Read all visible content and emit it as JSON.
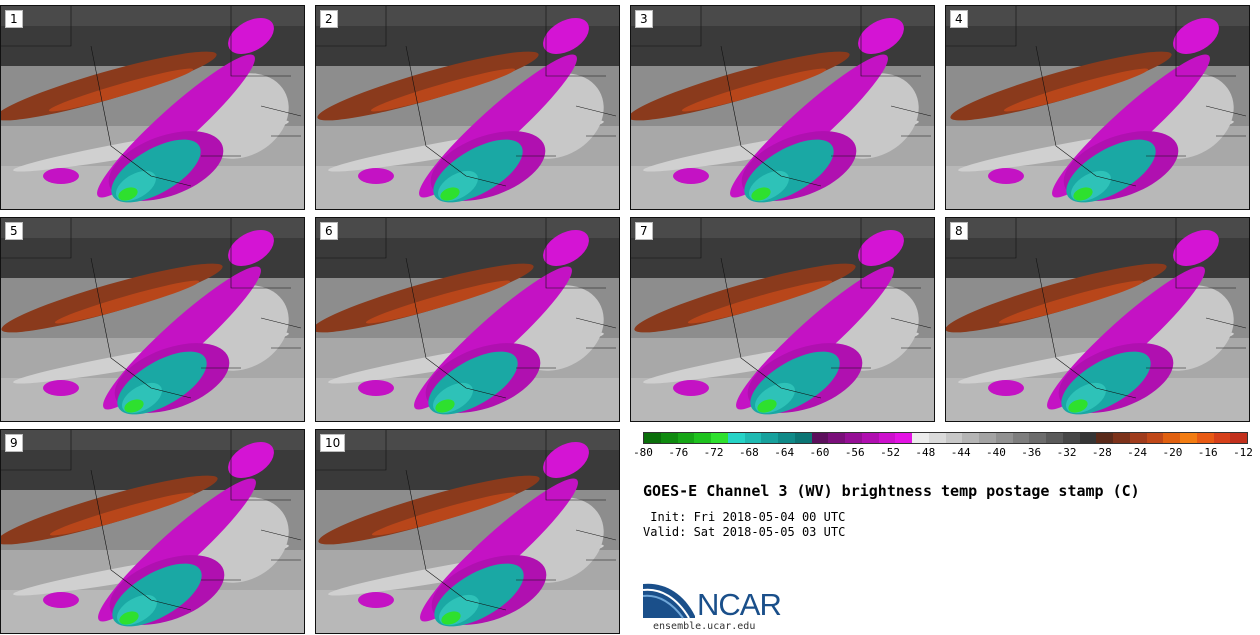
{
  "panels": [
    {
      "label": "1"
    },
    {
      "label": "2"
    },
    {
      "label": "3"
    },
    {
      "label": "4"
    },
    {
      "label": "5"
    },
    {
      "label": "6"
    },
    {
      "label": "7"
    },
    {
      "label": "8"
    },
    {
      "label": "9"
    },
    {
      "label": "10"
    }
  ],
  "colorbar": {
    "colors": [
      "#0a6e0a",
      "#0f8a0f",
      "#16a516",
      "#1ec21e",
      "#2ee02e",
      "#26d3c6",
      "#1fbab2",
      "#17a19d",
      "#108a88",
      "#0b7574",
      "#5c0f5c",
      "#7a0f7a",
      "#950f95",
      "#b00fb0",
      "#cc10cc",
      "#e313e3",
      "#ececec",
      "#dadada",
      "#c8c8c8",
      "#b5b5b5",
      "#a3a3a3",
      "#919191",
      "#7e7e7e",
      "#6c6c6c",
      "#5a5a5a",
      "#474747",
      "#353535",
      "#5a2a1a",
      "#7d321a",
      "#a03c1c",
      "#c04818",
      "#e06010",
      "#f27c12",
      "#e85a14",
      "#d6401a",
      "#c2301c"
    ],
    "ticks": [
      "-80",
      "-76",
      "-72",
      "-68",
      "-64",
      "-60",
      "-56",
      "-52",
      "-48",
      "-44",
      "-40",
      "-36",
      "-32",
      "-28",
      "-24",
      "-20",
      "-16",
      "-12"
    ]
  },
  "title": "GOES-E Channel 3 (WV) brightness temp postage stamp (C)",
  "init": " Init: Fri 2018-05-04 00 UTC",
  "valid": "Valid: Sat 2018-05-05 03 UTC",
  "logo": {
    "text": "NCAR",
    "site": "ensemble.ucar.edu",
    "color": "#1a4f8a"
  }
}
